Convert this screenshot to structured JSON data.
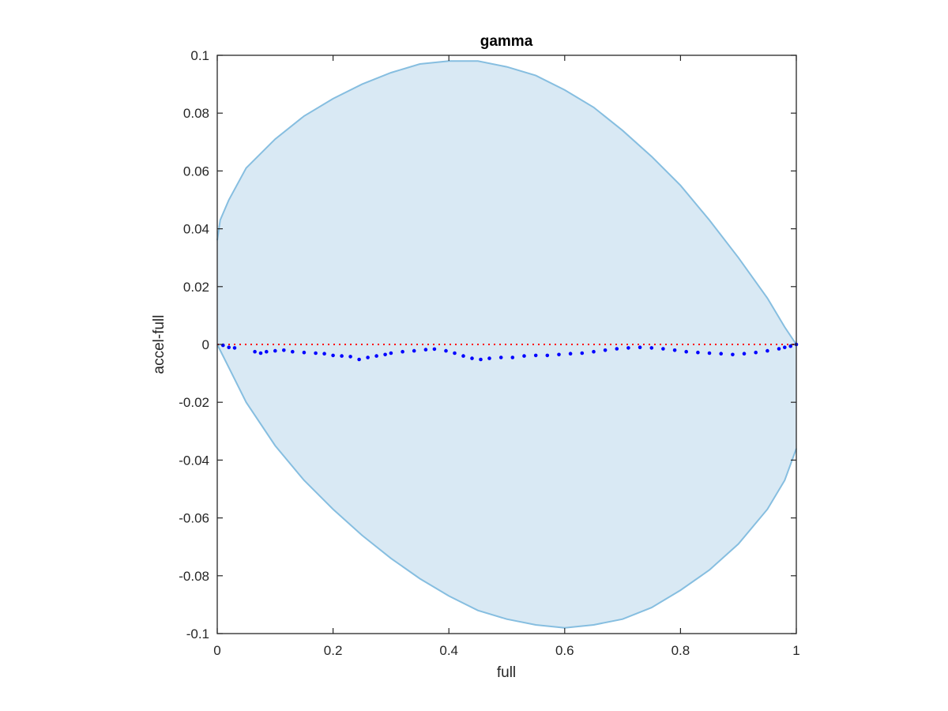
{
  "chart_data": {
    "type": "scatter",
    "title": "gamma",
    "xlabel": "full",
    "ylabel": "accel-full",
    "xlim": [
      0,
      1
    ],
    "ylim": [
      -0.1,
      0.1
    ],
    "x_ticks": [
      0,
      0.2,
      0.4,
      0.6,
      0.8,
      1
    ],
    "x_tick_labels": [
      "0",
      "0.2",
      "0.4",
      "0.6",
      "0.8",
      "1"
    ],
    "y_ticks": [
      0.1,
      0.08,
      0.06,
      0.04,
      0.02,
      0,
      -0.02,
      -0.04,
      -0.06,
      -0.08,
      -0.1
    ],
    "y_tick_labels": [
      "0.1",
      "0.08",
      "0.06",
      "0.04",
      "0.02",
      "0",
      "-0.02",
      "-0.04",
      "-0.06",
      "-0.08",
      "-0.1"
    ],
    "grid": false,
    "reference_line": {
      "y": 0,
      "style": "dotted",
      "color": "#ff0000"
    },
    "band": {
      "fill": "#d9e9f4",
      "stroke": "#86bee0",
      "upper": [
        [
          0,
          0.036
        ],
        [
          0.005,
          0.043
        ],
        [
          0.02,
          0.05
        ],
        [
          0.05,
          0.061
        ],
        [
          0.1,
          0.071
        ],
        [
          0.15,
          0.079
        ],
        [
          0.2,
          0.085
        ],
        [
          0.25,
          0.09
        ],
        [
          0.3,
          0.094
        ],
        [
          0.35,
          0.097
        ],
        [
          0.4,
          0.098
        ],
        [
          0.45,
          0.098
        ],
        [
          0.5,
          0.096
        ],
        [
          0.55,
          0.093
        ],
        [
          0.6,
          0.088
        ],
        [
          0.65,
          0.082
        ],
        [
          0.7,
          0.074
        ],
        [
          0.75,
          0.065
        ],
        [
          0.8,
          0.055
        ],
        [
          0.85,
          0.043
        ],
        [
          0.9,
          0.03
        ],
        [
          0.95,
          0.016
        ],
        [
          0.98,
          0.006
        ],
        [
          1,
          0
        ]
      ],
      "lower": [
        [
          0,
          0
        ],
        [
          0.02,
          -0.008
        ],
        [
          0.05,
          -0.02
        ],
        [
          0.1,
          -0.035
        ],
        [
          0.15,
          -0.047
        ],
        [
          0.2,
          -0.057
        ],
        [
          0.25,
          -0.066
        ],
        [
          0.3,
          -0.074
        ],
        [
          0.35,
          -0.081
        ],
        [
          0.4,
          -0.087
        ],
        [
          0.45,
          -0.092
        ],
        [
          0.5,
          -0.095
        ],
        [
          0.55,
          -0.097
        ],
        [
          0.6,
          -0.098
        ],
        [
          0.65,
          -0.097
        ],
        [
          0.7,
          -0.095
        ],
        [
          0.75,
          -0.091
        ],
        [
          0.8,
          -0.085
        ],
        [
          0.85,
          -0.078
        ],
        [
          0.9,
          -0.069
        ],
        [
          0.95,
          -0.057
        ],
        [
          0.98,
          -0.047
        ],
        [
          1,
          -0.036
        ]
      ]
    },
    "series": [
      {
        "color": "#0000ff",
        "points": [
          [
            0.01,
            -0.0003
          ],
          [
            0.02,
            -0.001
          ],
          [
            0.03,
            -0.0012
          ],
          [
            0.065,
            -0.0025
          ],
          [
            0.075,
            -0.003
          ],
          [
            0.085,
            -0.0025
          ],
          [
            0.1,
            -0.0022
          ],
          [
            0.115,
            -0.002
          ],
          [
            0.13,
            -0.0025
          ],
          [
            0.15,
            -0.0028
          ],
          [
            0.17,
            -0.003
          ],
          [
            0.185,
            -0.0032
          ],
          [
            0.2,
            -0.0038
          ],
          [
            0.215,
            -0.004
          ],
          [
            0.23,
            -0.0042
          ],
          [
            0.245,
            -0.0052
          ],
          [
            0.26,
            -0.0045
          ],
          [
            0.275,
            -0.004
          ],
          [
            0.29,
            -0.0035
          ],
          [
            0.3,
            -0.003
          ],
          [
            0.32,
            -0.0025
          ],
          [
            0.34,
            -0.0022
          ],
          [
            0.36,
            -0.0018
          ],
          [
            0.375,
            -0.0016
          ],
          [
            0.395,
            -0.0022
          ],
          [
            0.41,
            -0.003
          ],
          [
            0.425,
            -0.004
          ],
          [
            0.44,
            -0.0048
          ],
          [
            0.455,
            -0.0052
          ],
          [
            0.47,
            -0.0048
          ],
          [
            0.49,
            -0.0045
          ],
          [
            0.51,
            -0.0045
          ],
          [
            0.53,
            -0.004
          ],
          [
            0.55,
            -0.0038
          ],
          [
            0.57,
            -0.0038
          ],
          [
            0.59,
            -0.0035
          ],
          [
            0.61,
            -0.0032
          ],
          [
            0.63,
            -0.003
          ],
          [
            0.65,
            -0.0025
          ],
          [
            0.67,
            -0.002
          ],
          [
            0.69,
            -0.0015
          ],
          [
            0.71,
            -0.0012
          ],
          [
            0.73,
            -0.001
          ],
          [
            0.75,
            -0.0012
          ],
          [
            0.77,
            -0.0015
          ],
          [
            0.79,
            -0.002
          ],
          [
            0.81,
            -0.0025
          ],
          [
            0.83,
            -0.0028
          ],
          [
            0.85,
            -0.003
          ],
          [
            0.87,
            -0.0032
          ],
          [
            0.89,
            -0.0035
          ],
          [
            0.91,
            -0.0032
          ],
          [
            0.93,
            -0.0028
          ],
          [
            0.95,
            -0.0022
          ],
          [
            0.97,
            -0.0015
          ],
          [
            0.98,
            -0.001
          ],
          [
            0.99,
            -0.0006
          ],
          [
            1.0,
            0
          ]
        ]
      }
    ]
  }
}
